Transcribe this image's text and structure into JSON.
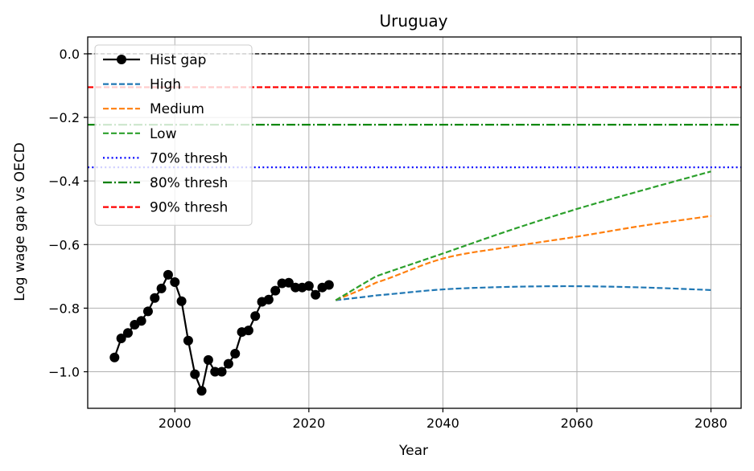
{
  "chart_data": {
    "type": "line",
    "title": "Uruguay",
    "xlabel": "Year",
    "ylabel": "Log wage gap vs OECD",
    "xlim": [
      1987,
      2084.5
    ],
    "ylim": [
      -1.115,
      0.053
    ],
    "xticks": [
      2000,
      2020,
      2040,
      2060,
      2080
    ],
    "xtick_labels": [
      "2000",
      "2020",
      "2040",
      "2060",
      "2080"
    ],
    "yticks": [
      0.0,
      -0.2,
      -0.4,
      -0.6,
      -0.8,
      -1.0
    ],
    "ytick_labels": [
      "0.0",
      "−0.2",
      "−0.4",
      "−0.6",
      "−0.8",
      "−1.0"
    ],
    "grid": true,
    "legend_position": "upper-left",
    "zero_line": {
      "y": 0.0,
      "color": "#000000"
    },
    "thresholds": [
      {
        "name": "70% thresh",
        "y": -0.357,
        "color": "#0000ff",
        "style": "dotted"
      },
      {
        "name": "80% thresh",
        "y": -0.223,
        "color": "#008000",
        "style": "dashdot"
      },
      {
        "name": "90% thresh",
        "y": -0.105,
        "color": "#ff0000",
        "style": "dashed"
      }
    ],
    "hist": {
      "name": "Hist gap",
      "color": "#000000",
      "x": [
        1991,
        1992,
        1993,
        1994,
        1995,
        1996,
        1997,
        1998,
        1999,
        2000,
        2001,
        2002,
        2003,
        2004,
        2005,
        2006,
        2007,
        2008,
        2009,
        2010,
        2011,
        2012,
        2013,
        2014,
        2015,
        2016,
        2017,
        2018,
        2019,
        2020,
        2021,
        2022,
        2023
      ],
      "y": [
        -0.955,
        -0.895,
        -0.878,
        -0.852,
        -0.84,
        -0.81,
        -0.768,
        -0.738,
        -0.695,
        -0.718,
        -0.778,
        -0.902,
        -1.008,
        -1.06,
        -0.963,
        -1.0,
        -1.0,
        -0.975,
        -0.943,
        -0.875,
        -0.87,
        -0.825,
        -0.78,
        -0.773,
        -0.745,
        -0.722,
        -0.72,
        -0.735,
        -0.735,
        -0.73,
        -0.758,
        -0.735,
        -0.727
      ]
    },
    "series": [
      {
        "name": "High",
        "color": "#1f77b4",
        "x": [
          2024,
          2030,
          2040,
          2050,
          2060,
          2070,
          2080
        ],
        "y": [
          -0.775,
          -0.76,
          -0.741,
          -0.733,
          -0.731,
          -0.735,
          -0.743
        ]
      },
      {
        "name": "Medium",
        "color": "#ff7f0e",
        "x": [
          2024,
          2030,
          2040,
          2050,
          2060,
          2070,
          2080
        ],
        "y": [
          -0.775,
          -0.72,
          -0.644,
          -0.607,
          -0.575,
          -0.54,
          -0.51
        ]
      },
      {
        "name": "Low",
        "color": "#2ca02c",
        "x": [
          2024,
          2030,
          2040,
          2050,
          2060,
          2070,
          2080
        ],
        "y": [
          -0.775,
          -0.7,
          -0.628,
          -0.555,
          -0.488,
          -0.428,
          -0.37
        ]
      }
    ],
    "legend": [
      {
        "label": "Hist gap",
        "color": "#000000",
        "style": "solid-marker"
      },
      {
        "label": "High",
        "color": "#1f77b4",
        "style": "dashed"
      },
      {
        "label": "Medium",
        "color": "#ff7f0e",
        "style": "dashed"
      },
      {
        "label": "Low",
        "color": "#2ca02c",
        "style": "dashed"
      },
      {
        "label": "70% thresh",
        "color": "#0000ff",
        "style": "dotted"
      },
      {
        "label": "80% thresh",
        "color": "#008000",
        "style": "dashdot"
      },
      {
        "label": "90% thresh",
        "color": "#ff0000",
        "style": "dashed"
      }
    ]
  }
}
